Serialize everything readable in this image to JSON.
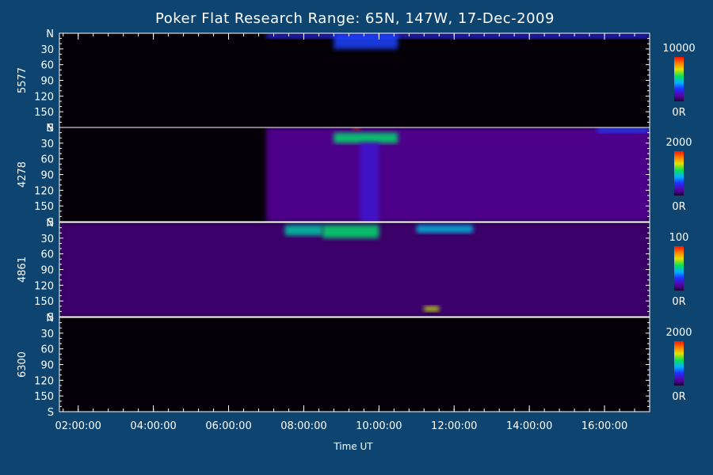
{
  "chart_data": {
    "type": "heatmap",
    "title": "Poker Flat Research Range: 65N, 147W, 17-Dec-2009",
    "xlabel": "Time UT",
    "x_ticks": [
      "02:00:00",
      "04:00:00",
      "06:00:00",
      "08:00:00",
      "10:00:00",
      "12:00:00",
      "14:00:00",
      "16:00:00"
    ],
    "x_range_hours": [
      1.5,
      17.2
    ],
    "y_ticks": [
      "N",
      "30",
      "60",
      "90",
      "120",
      "150",
      "S"
    ],
    "y_range_deg": [
      0,
      180
    ],
    "panels": [
      {
        "wavelength": "5577",
        "colorbar_max": "10000",
        "colorbar_min": "0R",
        "features": [
          {
            "t_start": 7.0,
            "t_end": 17.2,
            "zd_start": 0,
            "zd_end": 10,
            "level": 0.25
          },
          {
            "t_start": 8.8,
            "t_end": 10.5,
            "zd_start": 0,
            "zd_end": 30,
            "level": 0.3
          }
        ]
      },
      {
        "wavelength": "4278",
        "colorbar_max": "2000",
        "colorbar_min": "0R",
        "features": [
          {
            "t_start": 7.0,
            "t_end": 17.2,
            "zd_start": 0,
            "zd_end": 180,
            "level": 0.12
          },
          {
            "t_start": 8.8,
            "t_end": 10.5,
            "zd_start": 10,
            "zd_end": 30,
            "level": 0.55
          },
          {
            "t_start": 9.3,
            "t_end": 9.5,
            "zd_start": 0,
            "zd_end": 5,
            "level": 0.95
          },
          {
            "t_start": 9.5,
            "t_end": 10.0,
            "zd_start": 30,
            "zd_end": 180,
            "level": 0.2
          },
          {
            "t_start": 15.8,
            "t_end": 17.2,
            "zd_start": 0,
            "zd_end": 10,
            "level": 0.3
          }
        ]
      },
      {
        "wavelength": "4861",
        "colorbar_max": "100",
        "colorbar_min": "0R",
        "features": [
          {
            "t_start": 1.5,
            "t_end": 17.2,
            "zd_start": 0,
            "zd_end": 180,
            "level": 0.08
          },
          {
            "t_start": 7.5,
            "t_end": 8.5,
            "zd_start": 5,
            "zd_end": 25,
            "level": 0.5
          },
          {
            "t_start": 8.5,
            "t_end": 10.0,
            "zd_start": 5,
            "zd_end": 30,
            "level": 0.55
          },
          {
            "t_start": 11.0,
            "t_end": 12.5,
            "zd_start": 5,
            "zd_end": 20,
            "level": 0.45
          },
          {
            "t_start": 11.2,
            "t_end": 11.6,
            "zd_start": 160,
            "zd_end": 170,
            "level": 0.7
          }
        ]
      },
      {
        "wavelength": "6300",
        "colorbar_max": "2000",
        "colorbar_min": "0R",
        "features": []
      }
    ]
  }
}
